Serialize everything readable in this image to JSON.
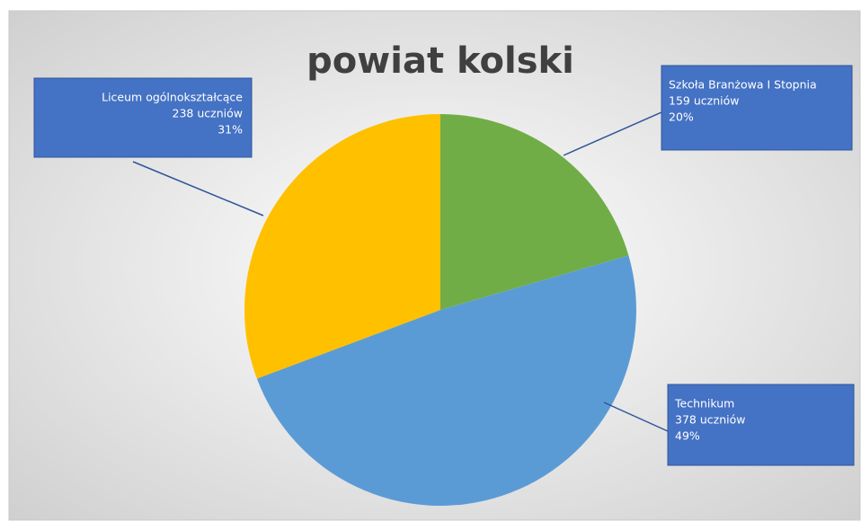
{
  "chart_data": {
    "type": "pie",
    "title": "powiat kolski",
    "categories": [
      "Szkoła Branżowa I Stopnia",
      "Technikum",
      "Liceum ogólnokształcące"
    ],
    "values": [
      159,
      378,
      238
    ],
    "value_labels": [
      "159 uczniów",
      "378 uczniów",
      "238 uczniów"
    ],
    "percents": [
      20,
      49,
      31
    ],
    "percent_labels": [
      "20%",
      "49%",
      "31%"
    ],
    "colors": [
      "#70ad47",
      "#5b9bd5",
      "#ffc000"
    ]
  }
}
